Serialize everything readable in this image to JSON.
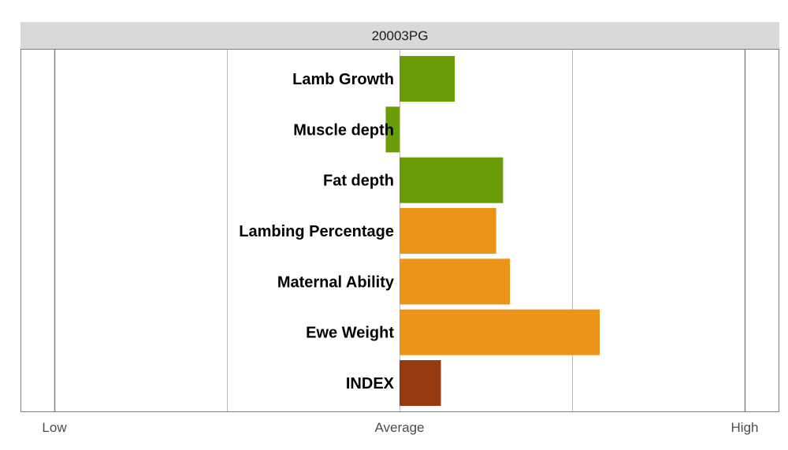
{
  "chart_data": {
    "type": "bar",
    "orientation": "horizontal",
    "facet_title": "20003PG",
    "title": "",
    "xlabel": "",
    "ylabel": "",
    "xlim": [
      -1,
      1
    ],
    "x_ticks": [
      {
        "value": -1,
        "label": "Low"
      },
      {
        "value": 0,
        "label": "Average"
      },
      {
        "value": 1,
        "label": "High"
      }
    ],
    "x_gridlines": [
      -1,
      -0.5,
      0,
      0.5,
      1
    ],
    "grid": true,
    "categories": [
      "Lamb Growth",
      "Muscle depth",
      "Fat depth",
      "Lambing Percentage",
      "Maternal Ability",
      "Ewe Weight",
      "INDEX"
    ],
    "values": [
      0.16,
      -0.04,
      0.3,
      0.28,
      0.32,
      0.58,
      0.12
    ],
    "colors": [
      "#699c06",
      "#699c06",
      "#699c06",
      "#ec9318",
      "#ec9318",
      "#ec9318",
      "#953a11"
    ],
    "panel_background": "#ffffff",
    "strip_background": "#d9d9d9"
  }
}
